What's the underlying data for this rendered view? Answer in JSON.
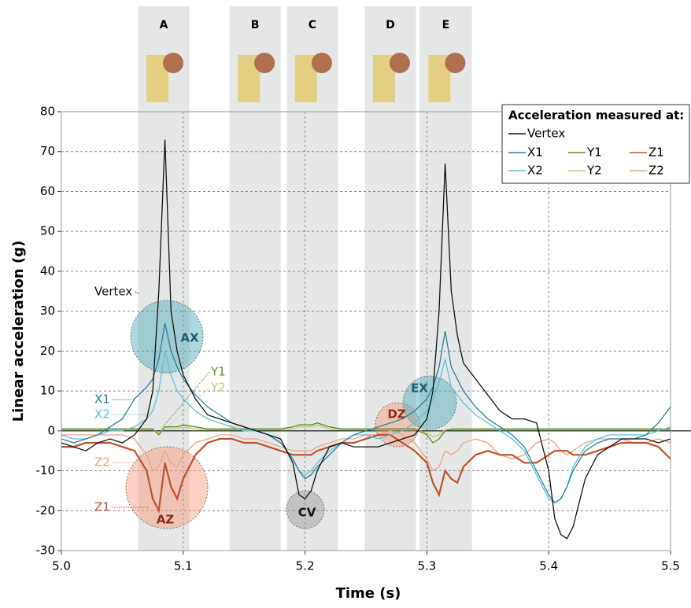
{
  "chart_data": {
    "type": "line",
    "x_label": "Time (s)",
    "y_label": "Linear acceleration (g)",
    "legend_title": "Acceleration measured at:",
    "legend_position": "upper right",
    "grid": true,
    "xlim": [
      5.0,
      5.5
    ],
    "xticks": [
      {
        "value": 5.0,
        "label": "5.0"
      },
      5.1,
      5.2,
      5.3,
      5.4,
      5.5
    ],
    "ylim": [
      -30,
      80
    ],
    "yticks": [
      -30,
      -20,
      -10,
      0,
      10,
      20,
      30,
      40,
      50,
      60,
      70,
      80
    ],
    "phases": [
      {
        "label": "A",
        "xlim": [
          5.063,
          5.105
        ]
      },
      {
        "label": "B",
        "xlim": [
          5.138,
          5.18
        ]
      },
      {
        "label": "C",
        "xlim": [
          5.185,
          5.227
        ]
      },
      {
        "label": "D",
        "xlim": [
          5.249,
          5.291
        ]
      },
      {
        "label": "E",
        "xlim": [
          5.294,
          5.337
        ]
      }
    ],
    "annotations": [
      "AX",
      "AZ",
      "CV",
      "DZ",
      "EX"
    ],
    "x": [
      5.0,
      5.01,
      5.02,
      5.03,
      5.04,
      5.05,
      5.06,
      5.07,
      5.075,
      5.08,
      5.085,
      5.09,
      5.095,
      5.1,
      5.11,
      5.12,
      5.13,
      5.14,
      5.15,
      5.16,
      5.17,
      5.18,
      5.19,
      5.195,
      5.2,
      5.205,
      5.21,
      5.22,
      5.23,
      5.24,
      5.25,
      5.26,
      5.27,
      5.28,
      5.29,
      5.3,
      5.305,
      5.31,
      5.315,
      5.32,
      5.325,
      5.33,
      5.34,
      5.35,
      5.36,
      5.37,
      5.38,
      5.39,
      5.4,
      5.405,
      5.41,
      5.415,
      5.42,
      5.43,
      5.44,
      5.45,
      5.46,
      5.47,
      5.48,
      5.49,
      5.5
    ],
    "series": [
      {
        "name": "Vertex",
        "color": "#111111",
        "values": [
          -3,
          -4,
          -5,
          -3,
          -2,
          -3,
          -1,
          3,
          10,
          35,
          73,
          30,
          20,
          14,
          8,
          4,
          3,
          2,
          1,
          0,
          -1,
          -2,
          -8,
          -16,
          -17,
          -15,
          -10,
          -4,
          -3,
          -4,
          -4,
          -4,
          -3,
          -2,
          -1,
          3,
          10,
          30,
          67,
          35,
          24,
          17,
          13,
          9,
          5,
          3,
          3,
          2,
          -10,
          -22,
          -26,
          -27,
          -24,
          -12,
          -6,
          -4,
          -2,
          -2,
          -2,
          -3,
          -2
        ]
      },
      {
        "name": "X1",
        "color": "#2b7fa2",
        "values": [
          -2,
          -3,
          -2,
          -1,
          1,
          3,
          8,
          11,
          13,
          18,
          27,
          20,
          16,
          13,
          9,
          6,
          4,
          2,
          1,
          0,
          -1,
          -3,
          -7,
          -10,
          -12,
          -11,
          -9,
          -6,
          -3,
          -1,
          0,
          1,
          2,
          3,
          5,
          8,
          11,
          16,
          25,
          16,
          13,
          10,
          6,
          3,
          1,
          -1,
          -4,
          -10,
          -16,
          -18,
          -17,
          -14,
          -10,
          -5,
          -3,
          -2,
          -2,
          -2,
          -1,
          2,
          6
        ]
      },
      {
        "name": "X2",
        "color": "#5cc0d8",
        "values": [
          -1,
          -2,
          -2,
          -1,
          0,
          0,
          1,
          3,
          5,
          10,
          20,
          14,
          10,
          8,
          5,
          3,
          2,
          1,
          0,
          0,
          -1,
          -3,
          -7,
          -10,
          -11,
          -10,
          -8,
          -5,
          -3,
          -1,
          -1,
          -2,
          -1,
          0,
          2,
          5,
          8,
          12,
          18,
          11,
          9,
          7,
          4,
          2,
          0,
          -2,
          -5,
          -11,
          -17,
          -18,
          -17,
          -14,
          -9,
          -4,
          -2,
          -1,
          -1,
          -1,
          -1,
          0,
          1
        ]
      },
      {
        "name": "Y1",
        "color": "#5e8c22",
        "values": [
          0.5,
          0.5,
          0.5,
          0.5,
          0.5,
          0.5,
          0.5,
          0.5,
          0.5,
          -1,
          1,
          1,
          1,
          1.5,
          1,
          0.5,
          0.5,
          0.5,
          0.5,
          0.5,
          0.5,
          0.5,
          1,
          1.5,
          1.5,
          1.5,
          2,
          1,
          0.5,
          0.5,
          0.5,
          0.5,
          0.5,
          0.5,
          0.5,
          -1,
          -3,
          -2,
          0,
          0.5,
          0.5,
          0.5,
          0.5,
          0.5,
          0.5,
          0.5,
          0.5,
          0.5,
          0.5,
          0.5,
          0.5,
          0.5,
          0.5,
          0.5,
          0.5,
          0.5,
          0.5,
          0.5,
          0.5,
          0.5,
          0.5
        ]
      },
      {
        "name": "Y2",
        "color": "#b9d072",
        "values": [
          0.3,
          0.3,
          0.3,
          0.3,
          0.3,
          0.3,
          0.3,
          0.3,
          0.3,
          -0.5,
          0.5,
          0.5,
          0.5,
          1,
          0.5,
          0.3,
          0.3,
          0.3,
          0.3,
          0.3,
          0.3,
          0.3,
          0.5,
          1,
          1,
          1,
          1.5,
          0.5,
          0.3,
          0.3,
          0.3,
          0.3,
          0.3,
          0.3,
          0.3,
          -0.5,
          -1.5,
          -1,
          0.3,
          0.3,
          0.3,
          0.3,
          0.3,
          0.3,
          0.3,
          0.3,
          0.3,
          0.3,
          0.3,
          0.3,
          0.3,
          0.3,
          0.3,
          0.3,
          0.3,
          0.3,
          0.3,
          0.3,
          0.3,
          0.3,
          0.3
        ]
      },
      {
        "name": "Z1",
        "color": "#c0512b",
        "values": [
          -4,
          -4,
          -3,
          -3,
          -3,
          -4,
          -5,
          -10,
          -17,
          -20,
          -8,
          -14,
          -17,
          -12,
          -6,
          -3,
          -2,
          -2,
          -3,
          -3,
          -4,
          -5,
          -6,
          -6,
          -6,
          -6,
          -5,
          -4,
          -3,
          -3,
          -2,
          -1,
          -1,
          -3,
          -5,
          -8,
          -13,
          -16,
          -10,
          -12,
          -13,
          -9,
          -6,
          -5,
          -6,
          -6,
          -8,
          -8,
          -6,
          -5,
          -5,
          -5,
          -6,
          -6,
          -5,
          -4,
          -3,
          -3,
          -3,
          -4,
          -7
        ]
      },
      {
        "name": "Z2",
        "color": "#f0a283",
        "values": [
          -1,
          -1,
          -1,
          -1,
          -1,
          -1,
          -2,
          -6,
          -10,
          -9,
          -5,
          -8,
          -9,
          -6,
          -3,
          -2,
          -1,
          -1,
          -2,
          -2,
          -3,
          -4,
          -5,
          -5,
          -5,
          -5,
          -4,
          -3,
          -2,
          -2,
          -1,
          -1,
          0,
          -1,
          -3,
          -7,
          -10,
          -9,
          -5,
          -6,
          -5,
          -3,
          -2,
          -3,
          -6,
          -7,
          -6,
          -3,
          -2,
          -3,
          -5,
          -6,
          -5,
          -3,
          -2,
          -2,
          -2,
          -3,
          -3,
          -2,
          -3
        ]
      }
    ]
  }
}
